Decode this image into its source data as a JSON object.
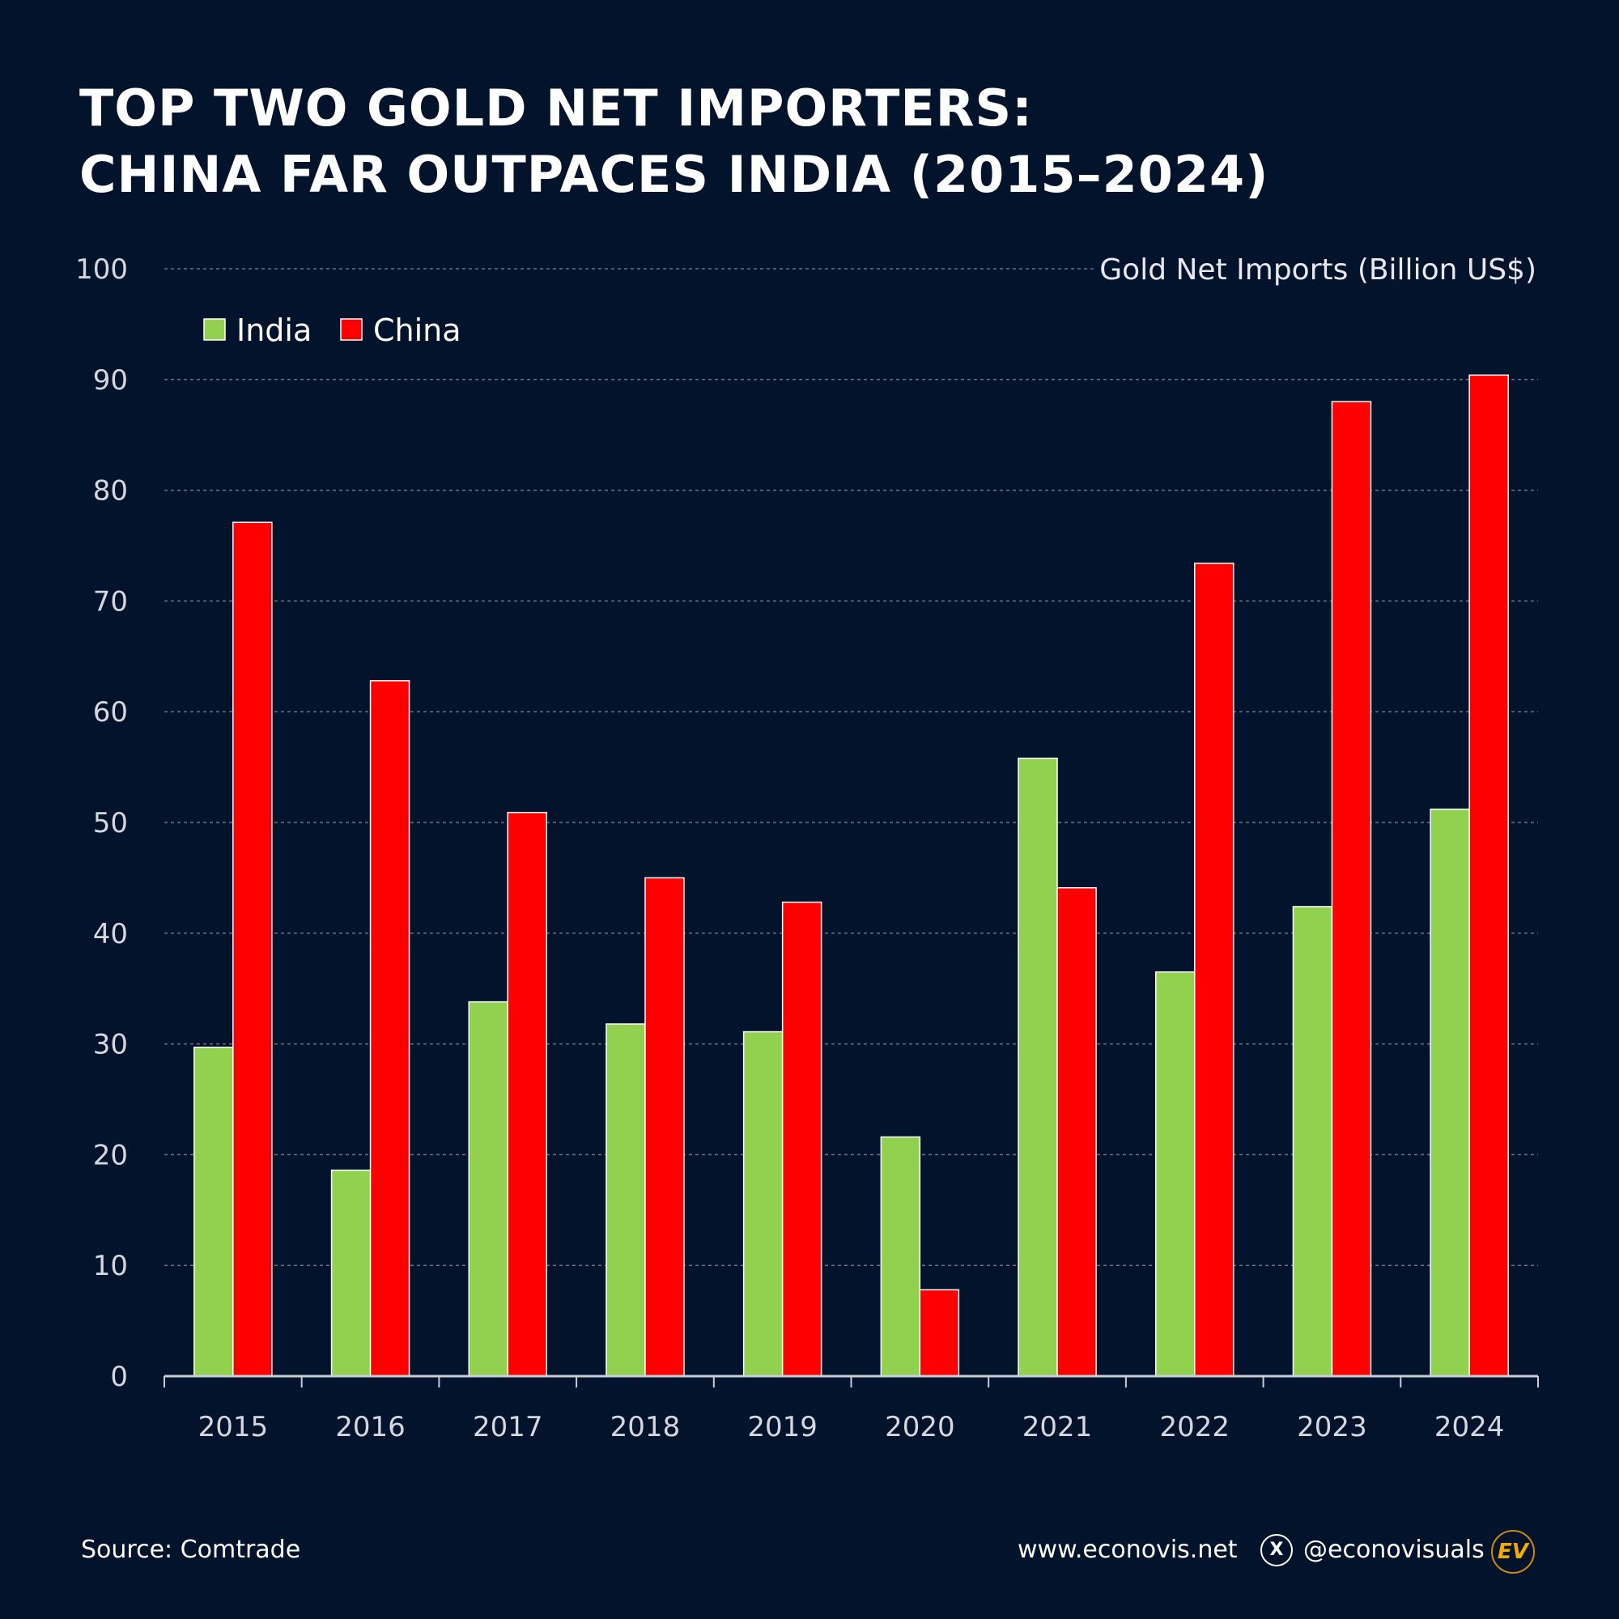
{
  "title": {
    "line1": "TOP TWO GOLD NET IMPORTERS:",
    "line2": "CHINA FAR OUTPACES INDIA (2015–2024)"
  },
  "chart_data": {
    "type": "bar",
    "ylabel": "Gold Net Imports (Billion US$)",
    "categories": [
      "2015",
      "2016",
      "2017",
      "2018",
      "2019",
      "2020",
      "2021",
      "2022",
      "2023",
      "2024"
    ],
    "series": [
      {
        "name": "India",
        "color": "#92d050",
        "values": [
          29.7,
          18.6,
          33.8,
          31.8,
          31.1,
          21.6,
          55.8,
          36.5,
          42.4,
          51.2
        ]
      },
      {
        "name": "China",
        "color": "#ff0000",
        "values": [
          77.1,
          62.8,
          50.9,
          45.0,
          42.8,
          7.8,
          44.1,
          73.4,
          88.0,
          90.4
        ]
      }
    ],
    "ylim": [
      0,
      100
    ],
    "yticks": [
      "0",
      "10",
      "20",
      "30",
      "40",
      "50",
      "60",
      "70",
      "80",
      "90",
      "100"
    ],
    "grid": true,
    "legend_position": "top-left"
  },
  "footer": {
    "source": "Source: Comtrade",
    "website": "www.econovis.net",
    "handle": "@econovisuals",
    "x_icon": "X",
    "logo": "EV"
  }
}
